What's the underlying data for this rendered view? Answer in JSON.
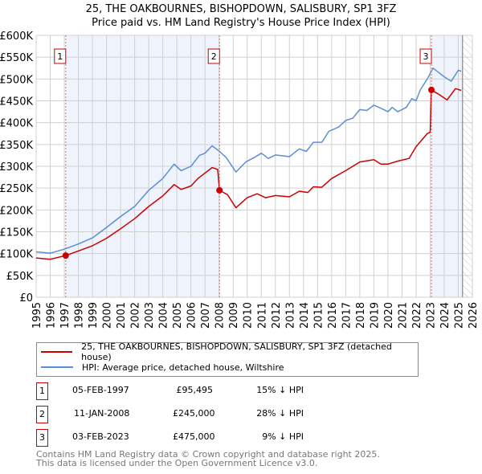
{
  "title_line1": "25, THE OAKBOURNES, BISHOPDOWN, SALISBURY, SP1 3FZ",
  "title_line2": "Price paid vs. HM Land Registry's House Price Index (HPI)",
  "colors": {
    "property": "#cc0000",
    "hpi": "#5b8fd4",
    "shade": "#eef3fc"
  },
  "chart_data": {
    "type": "line",
    "xlim": [
      1995,
      2026
    ],
    "ylim": [
      0,
      600000
    ],
    "x_ticks": [
      "1995",
      "1996",
      "1997",
      "1998",
      "1999",
      "2000",
      "2001",
      "2002",
      "2003",
      "2004",
      "2005",
      "2006",
      "2007",
      "2008",
      "2009",
      "2010",
      "2011",
      "2012",
      "2013",
      "2014",
      "2015",
      "2016",
      "2017",
      "2018",
      "2019",
      "2020",
      "2021",
      "2022",
      "2023",
      "2024",
      "2025",
      "2026"
    ],
    "y_ticks": [
      {
        "value": 0,
        "label": "£0"
      },
      {
        "value": 50000,
        "label": "£50K"
      },
      {
        "value": 100000,
        "label": "£100K"
      },
      {
        "value": 150000,
        "label": "£150K"
      },
      {
        "value": 200000,
        "label": "£200K"
      },
      {
        "value": 250000,
        "label": "£250K"
      },
      {
        "value": 300000,
        "label": "£300K"
      },
      {
        "value": 350000,
        "label": "£350K"
      },
      {
        "value": 400000,
        "label": "£400K"
      },
      {
        "value": 450000,
        "label": "£450K"
      },
      {
        "value": 500000,
        "label": "£500K"
      },
      {
        "value": 550000,
        "label": "£550K"
      },
      {
        "value": 600000,
        "label": "£600K"
      }
    ],
    "data_end": 2025.3,
    "series": [
      {
        "name": "25, THE OAKBOURNES, BISHOPDOWN, SALISBURY, SP1 3FZ (detached house)",
        "color": "#cc0000",
        "x": [
          1995,
          1996,
          1997.1,
          1998,
          1999,
          2000,
          2001,
          2002,
          2003,
          2004,
          2004.8,
          2005.3,
          2006,
          2006.5,
          2007.5,
          2007.9,
          2008.03,
          2008.6,
          2009.2,
          2010,
          2010.7,
          2011.3,
          2012,
          2013,
          2013.7,
          2014.3,
          2014.7,
          2015.3,
          2016,
          2017,
          2018,
          2019,
          2019.5,
          2020,
          2020.7,
          2021.5,
          2022,
          2022.8,
          2023.0,
          2023.09,
          2023.6,
          2024.2,
          2024.8,
          2025.2
        ],
        "y": [
          90000,
          87000,
          95495,
          106000,
          118000,
          135000,
          157000,
          180000,
          208000,
          232000,
          258000,
          247000,
          255000,
          272000,
          297000,
          293000,
          245000,
          235000,
          205000,
          228000,
          237000,
          228000,
          233000,
          230000,
          243000,
          240000,
          253000,
          252000,
          272000,
          290000,
          310000,
          315000,
          305000,
          305000,
          312000,
          318000,
          345000,
          375000,
          378000,
          475000,
          465000,
          452000,
          478000,
          474000
        ]
      },
      {
        "name": "HPI: Average price, detached house, Wiltshire",
        "color": "#5b8fd4",
        "x": [
          1995,
          1996,
          1997,
          1998,
          1999,
          2000,
          2001,
          2002,
          2003,
          2004,
          2004.8,
          2005.3,
          2006,
          2006.6,
          2007,
          2007.5,
          2008,
          2008.5,
          2009.2,
          2009.9,
          2010.5,
          2011,
          2011.5,
          2012,
          2013,
          2013.7,
          2014.2,
          2014.7,
          2015.3,
          2015.8,
          2016.5,
          2017,
          2017.5,
          2018,
          2018.5,
          2019,
          2019.5,
          2020,
          2020.3,
          2020.7,
          2021.3,
          2021.7,
          2022,
          2022.3,
          2022.8,
          2023.2,
          2023.6,
          2024,
          2024.5,
          2025,
          2025.2
        ],
        "y": [
          104000,
          101000,
          110000,
          122000,
          136000,
          160000,
          185000,
          208000,
          245000,
          272000,
          305000,
          290000,
          300000,
          325000,
          330000,
          347000,
          335000,
          320000,
          287000,
          310000,
          320000,
          330000,
          318000,
          326000,
          322000,
          340000,
          334000,
          355000,
          355000,
          380000,
          390000,
          405000,
          410000,
          430000,
          428000,
          440000,
          433000,
          425000,
          435000,
          425000,
          435000,
          455000,
          450000,
          475000,
          500000,
          525000,
          515000,
          505000,
          495000,
          520000,
          518000
        ]
      }
    ],
    "sales": [
      {
        "id": "1",
        "x": 1997.1,
        "date": "05-FEB-1997",
        "price_value": 95495,
        "price": "£95,495",
        "delta": "15% ↓ HPI"
      },
      {
        "id": "2",
        "x": 2008.03,
        "date": "11-JAN-2008",
        "price_value": 245000,
        "price": "£245,000",
        "delta": "28% ↓ HPI"
      },
      {
        "id": "3",
        "x": 2023.09,
        "date": "03-FEB-2023",
        "price_value": 475000,
        "price": "£475,000",
        "delta": "9% ↓ HPI"
      }
    ]
  },
  "footer_line1": "Contains HM Land Registry data © Crown copyright and database right 2025.",
  "footer_line2": "This data is licensed under the Open Government Licence v3.0."
}
